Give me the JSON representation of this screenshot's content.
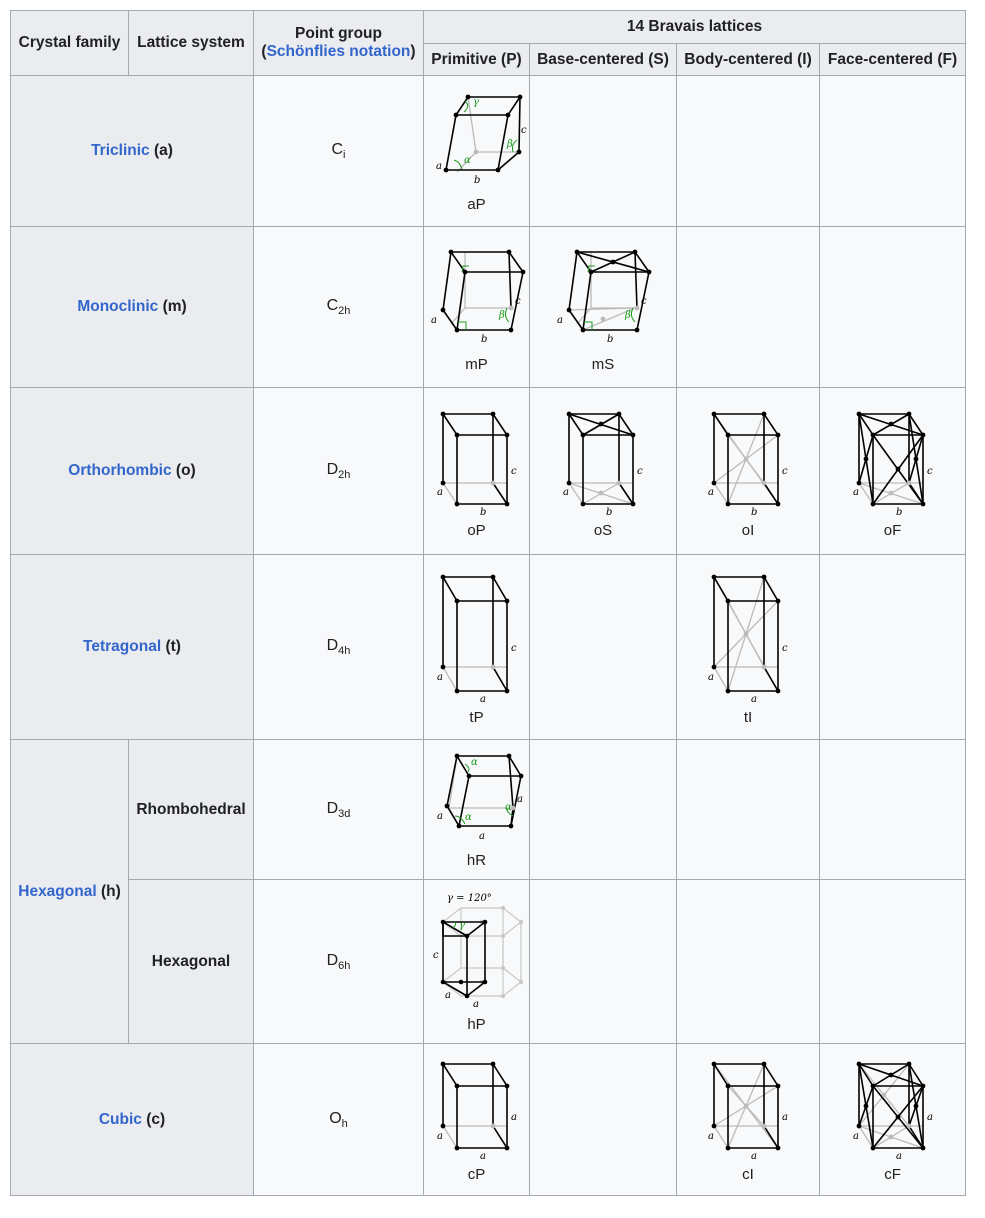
{
  "headers": {
    "crystal_family": "Crystal family",
    "lattice_system": "Lattice system",
    "point_group": "Point group",
    "point_group_notation": "Schönflies notation",
    "bravais": "14 Bravais lattices",
    "primitive": "Primitive (P)",
    "base_centered": "Base-centered (S)",
    "body_centered": "Body-centered (I)",
    "face_centered": "Face-centered (F)"
  },
  "rows": {
    "triclinic": {
      "family": "Triclinic",
      "code": "(a)",
      "pg_main": "C",
      "pg_sub": "i",
      "p": "aP"
    },
    "monoclinic": {
      "family": "Monoclinic",
      "code": "(m)",
      "pg_main": "C",
      "pg_sub": "2h",
      "p": "mP",
      "s": "mS"
    },
    "orthorhombic": {
      "family": "Orthorhombic",
      "code": "(o)",
      "pg_main": "D",
      "pg_sub": "2h",
      "p": "oP",
      "s": "oS",
      "i": "oI",
      "f": "oF"
    },
    "tetragonal": {
      "family": "Tetragonal",
      "code": "(t)",
      "pg_main": "D",
      "pg_sub": "4h",
      "p": "tP",
      "i": "tI"
    },
    "hexagonal": {
      "family": "Hexagonal",
      "code": "(h)",
      "rhombohedral": {
        "system": "Rhombohedral",
        "pg_main": "D",
        "pg_sub": "3d",
        "p": "hR"
      },
      "hex": {
        "system": "Hexagonal",
        "pg_main": "D",
        "pg_sub": "6h",
        "p": "hP"
      }
    },
    "cubic": {
      "family": "Cubic",
      "code": "(c)",
      "pg_main": "O",
      "pg_sub": "h",
      "p": "cP",
      "i": "cI",
      "f": "cF"
    }
  },
  "diagram_labels": {
    "a": "a",
    "b": "b",
    "c": "c",
    "alpha": "α",
    "beta": "β",
    "gamma": "γ",
    "gamma_120": "γ = 120°"
  },
  "colors": {
    "link": "#3366cc",
    "header_bg": "#eaecf0",
    "cell_bg": "#f8f9fa",
    "border": "#a2a9b1",
    "angle": "#1a9a1a"
  }
}
